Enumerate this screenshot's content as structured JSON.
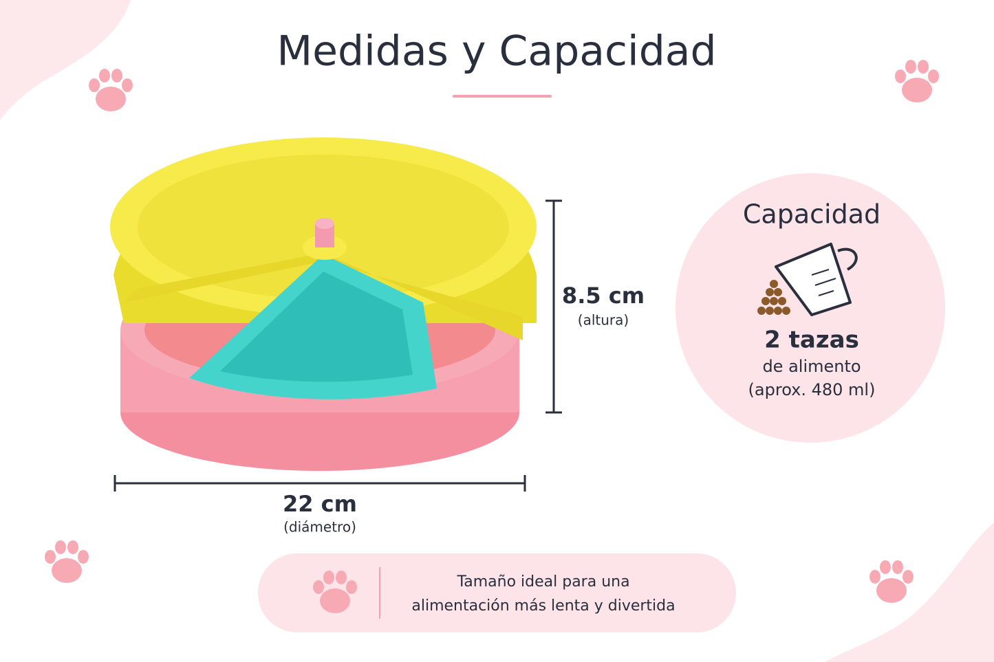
{
  "header": {
    "title": "Medidas y Capacidad"
  },
  "dimensions": {
    "height": {
      "value_text": "8.5 cm",
      "label": "(altura)"
    },
    "diameter": {
      "value_text": "22 cm",
      "label": "(diámetro)"
    }
  },
  "capacity": {
    "title": "Capacidad",
    "amount": "2 tazas",
    "unit": "de alimento",
    "note": "(aprox. 480 ml)"
  },
  "footer": {
    "lines": [
      "Tamaño ideal para una",
      "alimentación más lenta y divertida"
    ]
  }
}
